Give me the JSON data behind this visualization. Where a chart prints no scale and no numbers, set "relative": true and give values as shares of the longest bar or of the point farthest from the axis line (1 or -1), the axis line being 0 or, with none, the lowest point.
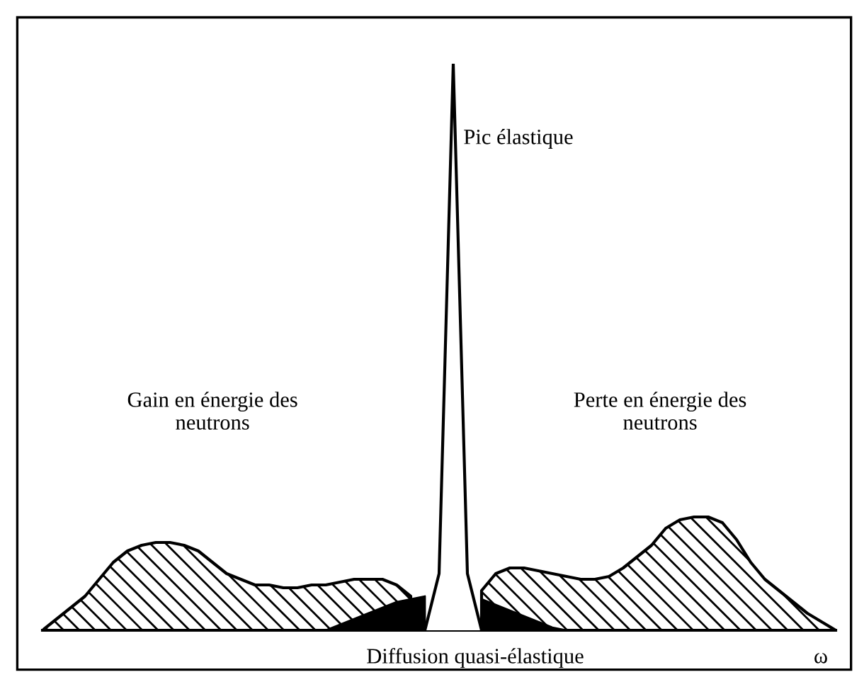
{
  "chart_data": {
    "type": "area",
    "relative": true,
    "legend": false,
    "xlabel": "ω",
    "categories": [
      null,
      null,
      null,
      null,
      null,
      null,
      null,
      null,
      null,
      null,
      null,
      null,
      null,
      null,
      null,
      null,
      null,
      null,
      null,
      null,
      null,
      null,
      null,
      null,
      null,
      null,
      null,
      null,
      null,
      null,
      null,
      null,
      null,
      null,
      null,
      null,
      null,
      null,
      null,
      null,
      null,
      null,
      null,
      null,
      null,
      null,
      null,
      null,
      null,
      null,
      null,
      null,
      null,
      null,
      null,
      null,
      null
    ],
    "series": [
      {
        "color": "#000000",
        "values": [
          0,
          0.02,
          0.04,
          0.06,
          0.09,
          0.12,
          0.14,
          0.15,
          0.155,
          0.155,
          0.15,
          0.14,
          0.12,
          0.1,
          0.09,
          0.08,
          0.08,
          0.075,
          0.075,
          0.08,
          0.08,
          0.085,
          0.09,
          0.09,
          0.09,
          0.08,
          0.06,
          null,
          null,
          null,
          null,
          0.07,
          0.1,
          0.11,
          0.11,
          0.105,
          0.1,
          0.095,
          0.09,
          0.09,
          0.095,
          0.11,
          0.13,
          0.15,
          0.18,
          0.195,
          0.2,
          0.2,
          0.19,
          0.16,
          0.12,
          0.09,
          0.07,
          0.05,
          0.03,
          0.015,
          0
        ]
      },
      {
        "color": "#000000",
        "values": [
          null,
          null,
          null,
          null,
          null,
          null,
          null,
          null,
          null,
          null,
          null,
          null,
          null,
          null,
          null,
          null,
          null,
          null,
          null,
          null,
          0,
          0.01,
          0.02,
          0.03,
          0.04,
          0.05,
          0.055,
          0.06,
          null,
          null,
          null,
          0.055,
          0.045,
          0.035,
          0.025,
          0.015,
          0.005,
          0,
          null,
          null,
          null,
          null,
          null,
          null,
          null,
          null,
          null,
          null,
          null,
          null,
          null,
          null,
          null,
          null,
          null,
          null,
          null
        ]
      },
      {
        "type": "line",
        "color": "#000000",
        "values": [
          null,
          null,
          null,
          null,
          null,
          null,
          null,
          null,
          null,
          null,
          null,
          null,
          null,
          null,
          null,
          null,
          null,
          null,
          null,
          null,
          null,
          null,
          null,
          null,
          null,
          null,
          null,
          0,
          0.1,
          1,
          0.1,
          0,
          null,
          null,
          null,
          null,
          null,
          null,
          null,
          null,
          null,
          null,
          null,
          null,
          null,
          null,
          null,
          null,
          null,
          null,
          null,
          null,
          null,
          null,
          null,
          null,
          null
        ]
      }
    ],
    "annotations": [
      "Pic élastique",
      "Gain en énergie des\nneutrons",
      "Perte en énergie des\nneutrons",
      "Diffusion quasi-élastique"
    ]
  }
}
